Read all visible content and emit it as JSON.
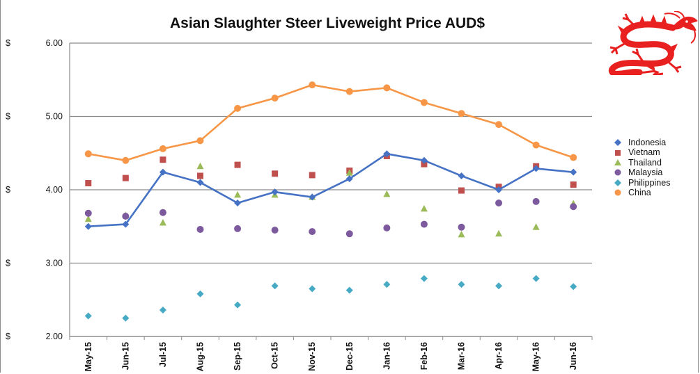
{
  "chart_data": {
    "type": "line",
    "title": "Asian Slaughter Steer Liveweight Price AUD$",
    "xlabel": "",
    "ylabel": "",
    "y_tick_prefix": "$",
    "ylim": [
      2.0,
      6.0
    ],
    "y_ticks": [
      "2.00",
      "3.00",
      "4.00",
      "5.00",
      "6.00"
    ],
    "grid": "horizontal",
    "legend_position": "right",
    "categories": [
      "May-15",
      "Jun-15",
      "Jul-15",
      "Aug-15",
      "Sep-15",
      "Oct-15",
      "Nov-15",
      "Dec-15",
      "Jan-16",
      "Feb-16",
      "Mar-16",
      "Apr-16",
      "May-16",
      "Jun-16"
    ],
    "series": [
      {
        "name": "Indonesia",
        "color": "#4572c4",
        "marker": "diamond",
        "line": true,
        "values": [
          3.5,
          3.53,
          4.24,
          4.1,
          3.82,
          3.97,
          3.9,
          4.15,
          4.49,
          4.4,
          4.19,
          4.0,
          4.29,
          4.24
        ]
      },
      {
        "name": "Vietnam",
        "color": "#c0504d",
        "marker": "square",
        "line": false,
        "values": [
          4.09,
          4.16,
          4.41,
          4.19,
          4.34,
          4.22,
          4.2,
          4.26,
          4.46,
          4.35,
          3.99,
          4.04,
          4.32,
          4.07
        ]
      },
      {
        "name": "Thailand",
        "color": "#9bbb59",
        "marker": "triangle",
        "line": false,
        "values": [
          3.6,
          3.65,
          3.55,
          4.32,
          3.93,
          3.93,
          3.9,
          4.23,
          3.94,
          3.74,
          3.39,
          3.4,
          3.49,
          3.81
        ]
      },
      {
        "name": "Malaysia",
        "color": "#7d5a9e",
        "marker": "circle",
        "line": false,
        "values": [
          3.68,
          3.64,
          3.69,
          3.46,
          3.47,
          3.45,
          3.43,
          3.4,
          3.48,
          3.53,
          3.49,
          3.82,
          3.84,
          3.77
        ]
      },
      {
        "name": "Philippines",
        "color": "#46aac5",
        "marker": "diamond",
        "line": false,
        "values": [
          2.28,
          2.25,
          2.36,
          2.58,
          2.43,
          2.69,
          2.65,
          2.63,
          2.71,
          2.79,
          2.71,
          2.69,
          2.79,
          2.68
        ]
      },
      {
        "name": "China",
        "color": "#f79646",
        "marker": "circle",
        "line": true,
        "values": [
          4.49,
          4.4,
          4.56,
          4.67,
          5.11,
          5.25,
          5.43,
          5.34,
          5.39,
          5.19,
          5.04,
          4.89,
          4.61,
          4.44
        ]
      }
    ]
  },
  "decor": {
    "logo": "red-dragon-icon",
    "logo_color": "#e8201f"
  }
}
